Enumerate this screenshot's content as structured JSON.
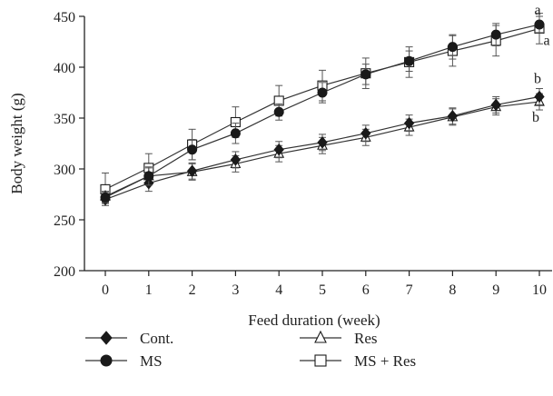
{
  "chart_data": {
    "type": "line",
    "title": "",
    "xlabel": "Feed duration (week)",
    "ylabel": "Body weight (g)",
    "x": [
      0,
      1,
      2,
      3,
      4,
      5,
      6,
      7,
      8,
      9,
      10
    ],
    "xlim": [
      0,
      10
    ],
    "ylim": [
      200,
      450
    ],
    "yticks": [
      200,
      250,
      300,
      350,
      400,
      450
    ],
    "grid": false,
    "legend_position": "bottom",
    "series": [
      {
        "name": "Cont.",
        "marker": "diamond",
        "values": [
          270,
          286,
          298,
          309,
          319,
          326,
          335,
          345,
          352,
          363,
          371
        ],
        "error": [
          4,
          8,
          8,
          8,
          8,
          8,
          8,
          8,
          8,
          8,
          8
        ]
      },
      {
        "name": "MS",
        "marker": "circle",
        "values": [
          272,
          293,
          319,
          335,
          356,
          375,
          393,
          406,
          420,
          432,
          442
        ],
        "error": [
          5,
          9,
          10,
          10,
          8,
          10,
          10,
          10,
          12,
          11,
          8
        ]
      },
      {
        "name": "Res",
        "marker": "triangle",
        "values": [
          273,
          293,
          297,
          305,
          315,
          323,
          331,
          341,
          351,
          361,
          366
        ],
        "error": [
          5,
          8,
          8,
          8,
          8,
          8,
          8,
          8,
          8,
          8,
          8
        ]
      },
      {
        "name": "MS + Res",
        "marker": "square",
        "values": [
          280,
          301,
          324,
          346,
          367,
          382,
          394,
          405,
          416,
          426,
          438
        ],
        "error": [
          16,
          14,
          15,
          15,
          15,
          15,
          15,
          15,
          15,
          15,
          15
        ]
      }
    ],
    "annotations": [
      "a",
      "a",
      "b",
      "b"
    ]
  }
}
